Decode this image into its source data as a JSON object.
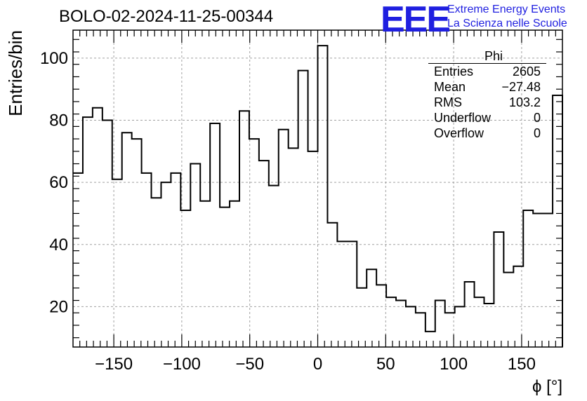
{
  "header": {
    "title": "BOLO-02-2024-11-25-00344",
    "logo": "EEE",
    "logo_line1": "Extreme Energy Events",
    "logo_line2": "La Scienza nelle Scuole"
  },
  "stats_box": {
    "name": "Phi",
    "rows": [
      {
        "label": "Entries",
        "value": "2605"
      },
      {
        "label": "Mean",
        "value": "−27.48"
      },
      {
        "label": "RMS",
        "value": "103.2"
      },
      {
        "label": "Underflow",
        "value": "0"
      },
      {
        "label": "Overflow",
        "value": "0"
      }
    ]
  },
  "chart_data": {
    "type": "histogram",
    "title": "BOLO-02-2024-11-25-00344",
    "xlabel": "ϕ [°]",
    "ylabel": "Entries/bin",
    "xlim": [
      -180,
      180
    ],
    "ylim": [
      7,
      109
    ],
    "bin_width": 7.2,
    "bin_start": -180,
    "values": [
      63,
      81,
      84,
      80,
      61,
      76,
      74,
      63,
      55,
      60,
      63,
      51,
      66,
      54,
      79,
      52,
      54,
      83,
      74,
      67,
      59,
      77,
      71,
      96,
      70,
      104,
      47,
      41,
      41,
      26,
      32,
      27,
      23,
      22,
      20,
      18,
      12,
      22,
      18,
      20,
      28,
      23,
      21,
      44,
      31,
      33,
      51,
      50,
      50,
      88
    ],
    "xticks": [
      -150,
      -100,
      -50,
      0,
      50,
      100,
      150
    ],
    "xtick_labels": [
      "−150",
      "−100",
      "−50",
      "0",
      "50",
      "100",
      "150"
    ],
    "yticks": [
      20,
      40,
      60,
      80,
      100
    ],
    "ytick_labels": [
      "20",
      "40",
      "60",
      "80",
      "100"
    ],
    "grid": true,
    "colors": {
      "line": "#000000",
      "grid": "#a0a0a0",
      "logo": "#1f1fe0"
    }
  }
}
